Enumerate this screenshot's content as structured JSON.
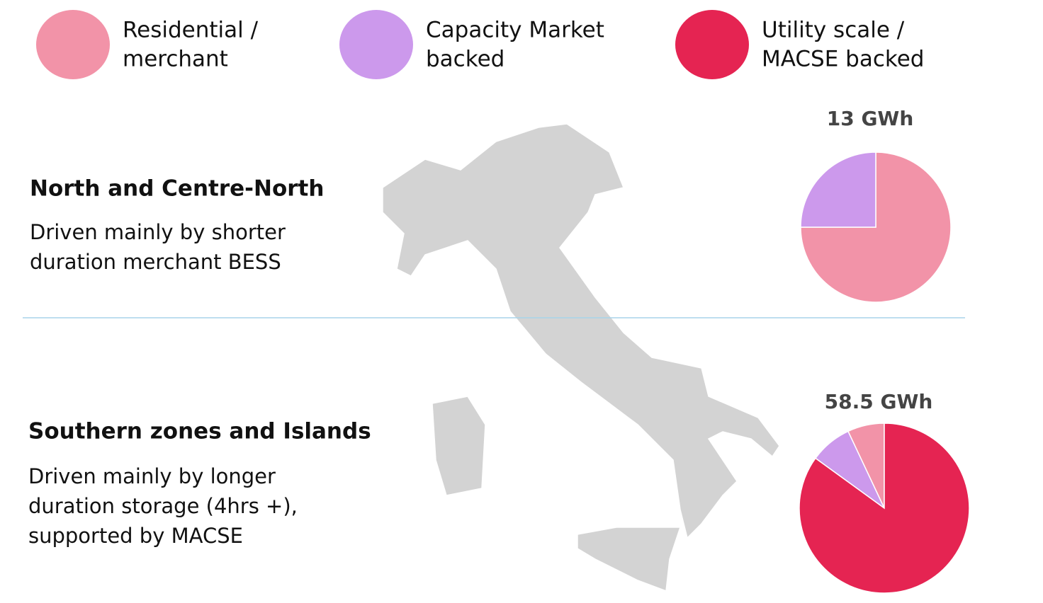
{
  "legend": [
    {
      "lines": [
        "Residential /",
        "merchant"
      ],
      "color": "#f293a8"
    },
    {
      "lines": [
        "Capacity Market",
        "backed"
      ],
      "color": "#cc99ec"
    },
    {
      "lines": [
        "Utility scale /",
        "MACSE backed"
      ],
      "color": "#e52452"
    }
  ],
  "regions": [
    {
      "heading": "North and Centre-North",
      "lines": [
        "Driven mainly by shorter",
        "duration merchant BESS"
      ]
    },
    {
      "heading": "Southern zones and Islands",
      "lines": [
        "Driven mainly by longer",
        "duration storage (4hrs +),",
        "supported by MACSE"
      ]
    }
  ],
  "chart_data": [
    {
      "type": "pie",
      "title": "13 GWh",
      "values": [
        75,
        25,
        0
      ],
      "direction": "clockwise"
    },
    {
      "type": "pie",
      "title": "58.5 GWh",
      "values": [
        7,
        8,
        85
      ],
      "direction": "counterclockwise"
    }
  ]
}
